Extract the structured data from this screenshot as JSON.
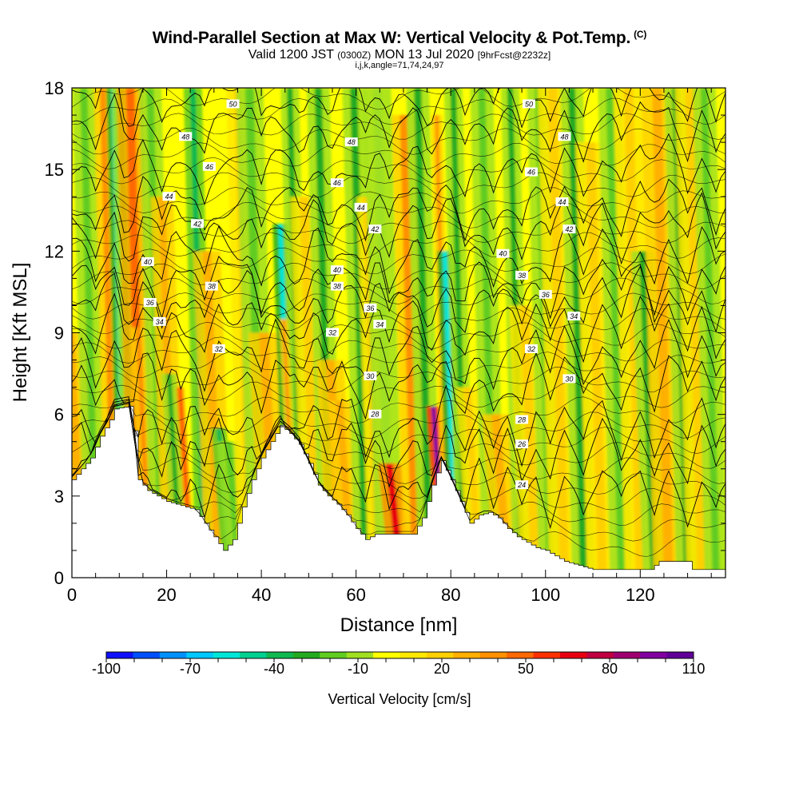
{
  "header": {
    "title": "Wind-Parallel Section at Max W: Vertical Velocity & Pot.Temp.",
    "copyright": "(C)",
    "valid_prefix": "Valid 1200 JST",
    "valid_utc": "(0300Z)",
    "valid_date": "MON 13 Jul 2020",
    "forecast_info": "[9hrFcst@2232z]",
    "params": "i,j,k,angle=71,74,24,97"
  },
  "chart_data": {
    "type": "heatmap",
    "xlabel": "Distance [nm]",
    "ylabel": "Height [Kft MSL]",
    "xlim": [
      0,
      138
    ],
    "ylim": [
      0,
      18
    ],
    "x_ticks": [
      0,
      20,
      40,
      60,
      80,
      100,
      120
    ],
    "y_ticks": [
      0,
      3,
      6,
      9,
      12,
      15,
      18
    ],
    "colorbar": {
      "title": "Vertical Velocity [cm/s]",
      "levels": [
        -100,
        -90,
        -80,
        -70,
        -60,
        -50,
        -40,
        -30,
        -20,
        -10,
        0,
        10,
        20,
        30,
        40,
        50,
        60,
        70,
        80,
        90,
        100,
        110
      ],
      "tick_labels": [
        -100,
        -70,
        -40,
        -10,
        20,
        50,
        80,
        110
      ],
      "colors": [
        "#1010ff",
        "#0050ff",
        "#0090ff",
        "#00c8ff",
        "#00e6d8",
        "#00d090",
        "#10b850",
        "#22aa20",
        "#60cc20",
        "#a0e020",
        "#ffff00",
        "#ffe800",
        "#ffd000",
        "#ffb000",
        "#ff9000",
        "#ff6800",
        "#ff3000",
        "#e80010",
        "#c00040",
        "#a00070",
        "#8000a0",
        "#600098"
      ]
    },
    "terrain_kft": [
      {
        "x": 0,
        "h": 3.6
      },
      {
        "x": 2,
        "h": 4.0
      },
      {
        "x": 4,
        "h": 4.4
      },
      {
        "x": 6,
        "h": 5.2
      },
      {
        "x": 8,
        "h": 5.8
      },
      {
        "x": 9,
        "h": 6.2
      },
      {
        "x": 12,
        "h": 6.3
      },
      {
        "x": 13,
        "h": 5.4
      },
      {
        "x": 13.5,
        "h": 4.6
      },
      {
        "x": 14,
        "h": 3.6
      },
      {
        "x": 16,
        "h": 3.2
      },
      {
        "x": 18,
        "h": 3.0
      },
      {
        "x": 20,
        "h": 2.8
      },
      {
        "x": 22,
        "h": 2.7
      },
      {
        "x": 24,
        "h": 2.6
      },
      {
        "x": 26,
        "h": 2.5
      },
      {
        "x": 28,
        "h": 2.0
      },
      {
        "x": 30,
        "h": 1.5
      },
      {
        "x": 32,
        "h": 1.0
      },
      {
        "x": 34,
        "h": 1.4
      },
      {
        "x": 36,
        "h": 2.6
      },
      {
        "x": 38,
        "h": 3.6
      },
      {
        "x": 40,
        "h": 4.4
      },
      {
        "x": 42,
        "h": 5.0
      },
      {
        "x": 44,
        "h": 5.6
      },
      {
        "x": 46,
        "h": 5.3
      },
      {
        "x": 48,
        "h": 4.9
      },
      {
        "x": 50,
        "h": 4.2
      },
      {
        "x": 52,
        "h": 3.4
      },
      {
        "x": 54,
        "h": 3.0
      },
      {
        "x": 56,
        "h": 2.7
      },
      {
        "x": 58,
        "h": 2.3
      },
      {
        "x": 60,
        "h": 1.8
      },
      {
        "x": 62,
        "h": 1.4
      },
      {
        "x": 64,
        "h": 1.6
      },
      {
        "x": 66,
        "h": 1.6
      },
      {
        "x": 68,
        "h": 1.6
      },
      {
        "x": 70,
        "h": 1.6
      },
      {
        "x": 72,
        "h": 1.6
      },
      {
        "x": 74,
        "h": 2.2
      },
      {
        "x": 76,
        "h": 3.4
      },
      {
        "x": 78,
        "h": 4.3
      },
      {
        "x": 80,
        "h": 3.6
      },
      {
        "x": 82,
        "h": 2.8
      },
      {
        "x": 84,
        "h": 2.0
      },
      {
        "x": 86,
        "h": 2.3
      },
      {
        "x": 88,
        "h": 2.4
      },
      {
        "x": 90,
        "h": 2.2
      },
      {
        "x": 92,
        "h": 1.8
      },
      {
        "x": 94,
        "h": 1.5
      },
      {
        "x": 96,
        "h": 1.3
      },
      {
        "x": 98,
        "h": 1.1
      },
      {
        "x": 100,
        "h": 1.0
      },
      {
        "x": 102,
        "h": 0.8
      },
      {
        "x": 104,
        "h": 0.6
      },
      {
        "x": 106,
        "h": 0.5
      },
      {
        "x": 108,
        "h": 0.4
      },
      {
        "x": 110,
        "h": 0.3
      },
      {
        "x": 122,
        "h": 0.3
      },
      {
        "x": 124,
        "h": 0.6
      },
      {
        "x": 130,
        "h": 0.6
      },
      {
        "x": 131,
        "h": 0.3
      },
      {
        "x": 138,
        "h": 0.3
      }
    ],
    "bands": [
      {
        "x": 2,
        "w": 2.0,
        "v": 35,
        "top": 9.0
      },
      {
        "x": 5,
        "w": 1.5,
        "v": -15,
        "top": 18
      },
      {
        "x": 9,
        "w": 1.2,
        "v": 45,
        "top": 18
      },
      {
        "x": 11.2,
        "w": 0.9,
        "v": -55,
        "top": 18
      },
      {
        "x": 12.8,
        "w": 1.2,
        "v": -25,
        "top": 18
      },
      {
        "x": 14.8,
        "w": 1.8,
        "v": 55,
        "top": 18
      },
      {
        "x": 16.5,
        "w": 1.0,
        "v": 45,
        "top": 9.2
      },
      {
        "x": 19,
        "w": 1.5,
        "v": -20,
        "top": 18
      },
      {
        "x": 21.5,
        "w": 1.5,
        "v": 30,
        "top": 14
      },
      {
        "x": 23,
        "w": 1.0,
        "v": -30,
        "top": 7.5
      },
      {
        "x": 25.3,
        "w": 0.5,
        "v": 65,
        "top": 7.0
      },
      {
        "x": 28,
        "w": 1.2,
        "v": -40,
        "top": 18
      },
      {
        "x": 31,
        "w": 1.8,
        "v": 30,
        "top": 12
      },
      {
        "x": 33.5,
        "w": 1.0,
        "v": -35,
        "top": 5.5
      },
      {
        "x": 35.5,
        "w": 1.5,
        "v": -20,
        "top": 5.0
      },
      {
        "x": 37.5,
        "w": 1.5,
        "v": 25,
        "top": 18
      },
      {
        "x": 40,
        "w": 1.8,
        "v": -15,
        "top": 18
      },
      {
        "x": 43,
        "w": 2.0,
        "v": 30,
        "top": 9.0
      },
      {
        "x": 46.5,
        "w": 1.0,
        "v": -55,
        "top": 13
      },
      {
        "x": 48.5,
        "w": 1.2,
        "v": -30,
        "top": 18
      },
      {
        "x": 47.2,
        "w": 0.6,
        "v": 40,
        "top": 9.5
      },
      {
        "x": 51.5,
        "w": 1.8,
        "v": 25,
        "top": 14
      },
      {
        "x": 54.5,
        "w": 1.5,
        "v": -25,
        "top": 18
      },
      {
        "x": 57,
        "w": 1.8,
        "v": 30,
        "top": 8
      },
      {
        "x": 59,
        "w": 1.5,
        "v": 35,
        "top": 6.5
      },
      {
        "x": 62,
        "w": 1.5,
        "v": -30,
        "top": 18
      },
      {
        "x": 64.5,
        "w": 1.2,
        "v": 20,
        "top": 14
      },
      {
        "x": 67,
        "w": 1.8,
        "v": -10,
        "top": 18
      },
      {
        "x": 69.5,
        "w": 1.5,
        "v": 70,
        "top": 4.2
      },
      {
        "x": 72.5,
        "w": 1.5,
        "v": 45,
        "top": 17
      },
      {
        "x": 75.5,
        "w": 1.5,
        "v": -30,
        "top": 18
      },
      {
        "x": 78.8,
        "w": 0.9,
        "v": 100,
        "top": 6.3
      },
      {
        "x": 79.5,
        "w": 0.7,
        "v": 40,
        "top": 17
      },
      {
        "x": 81.2,
        "w": 1.0,
        "v": -60,
        "top": 12
      },
      {
        "x": 83,
        "w": 1.2,
        "v": -25,
        "top": 18
      },
      {
        "x": 86,
        "w": 1.5,
        "v": 25,
        "top": 7
      },
      {
        "x": 89,
        "w": 1.5,
        "v": -20,
        "top": 18
      },
      {
        "x": 92,
        "w": 1.8,
        "v": 30,
        "top": 6
      },
      {
        "x": 95,
        "w": 1.2,
        "v": -25,
        "top": 18
      },
      {
        "x": 98,
        "w": 2.0,
        "v": 20,
        "top": 10
      },
      {
        "x": 101,
        "w": 1.5,
        "v": -20,
        "top": 18
      },
      {
        "x": 104,
        "w": 2.0,
        "v": 25,
        "top": 18
      },
      {
        "x": 108,
        "w": 1.5,
        "v": -25,
        "top": 18
      },
      {
        "x": 112,
        "w": 2.0,
        "v": 20,
        "top": 16
      },
      {
        "x": 116,
        "w": 1.5,
        "v": -15,
        "top": 18
      },
      {
        "x": 120,
        "w": 2.0,
        "v": 25,
        "top": 18
      },
      {
        "x": 123,
        "w": 1.5,
        "v": -30,
        "top": 12
      },
      {
        "x": 126,
        "w": 2.0,
        "v": 30,
        "top": 18
      },
      {
        "x": 130,
        "w": 1.5,
        "v": -25,
        "top": 18
      },
      {
        "x": 133,
        "w": 2.0,
        "v": 25,
        "top": 18
      },
      {
        "x": 136,
        "w": 1.5,
        "v": -20,
        "top": 18
      }
    ],
    "theta_contours": [
      {
        "label": "24",
        "h": 3.3
      },
      {
        "label": "26",
        "h": 4.7
      },
      {
        "label": "28",
        "h": 5.6
      },
      {
        "label": "30",
        "h": 7.3
      },
      {
        "label": "32",
        "h": 8.3
      },
      {
        "label": "34",
        "h": 9.4
      },
      {
        "label": "36",
        "h": 10.3
      },
      {
        "label": "38",
        "h": 11.0
      },
      {
        "label": "40",
        "h": 11.9
      },
      {
        "label": "42",
        "h": 13.0
      },
      {
        "label": "44",
        "h": 13.8
      },
      {
        "label": "46",
        "h": 15.2
      },
      {
        "label": "48",
        "h": 16.7
      },
      {
        "label": "50",
        "h": 17.8
      }
    ],
    "contour_labels": [
      {
        "t": "50",
        "x": 34,
        "y": 17.4
      },
      {
        "t": "48",
        "x": 24,
        "y": 16.2
      },
      {
        "t": "46",
        "x": 29,
        "y": 15.1
      },
      {
        "t": "44",
        "x": 20.5,
        "y": 14.0
      },
      {
        "t": "42",
        "x": 26.5,
        "y": 13.0
      },
      {
        "t": "40",
        "x": 16,
        "y": 11.6
      },
      {
        "t": "38",
        "x": 29.5,
        "y": 10.7
      },
      {
        "t": "36",
        "x": 16.5,
        "y": 10.1
      },
      {
        "t": "34",
        "x": 18.5,
        "y": 9.4
      },
      {
        "t": "32",
        "x": 31,
        "y": 8.4
      },
      {
        "t": "48",
        "x": 59,
        "y": 16.0
      },
      {
        "t": "46",
        "x": 56,
        "y": 14.5
      },
      {
        "t": "44",
        "x": 61,
        "y": 13.6
      },
      {
        "t": "42",
        "x": 64,
        "y": 12.8
      },
      {
        "t": "40",
        "x": 56,
        "y": 11.3
      },
      {
        "t": "38",
        "x": 56,
        "y": 10.7
      },
      {
        "t": "36",
        "x": 63,
        "y": 9.9
      },
      {
        "t": "34",
        "x": 65,
        "y": 9.3
      },
      {
        "t": "32",
        "x": 55,
        "y": 9.0
      },
      {
        "t": "30",
        "x": 63,
        "y": 7.4
      },
      {
        "t": "28",
        "x": 64,
        "y": 6.0
      },
      {
        "t": "50",
        "x": 96.5,
        "y": 17.4
      },
      {
        "t": "48",
        "x": 104,
        "y": 16.2
      },
      {
        "t": "46",
        "x": 97,
        "y": 14.9
      },
      {
        "t": "44",
        "x": 103.5,
        "y": 13.8
      },
      {
        "t": "42",
        "x": 105,
        "y": 12.8
      },
      {
        "t": "40",
        "x": 91,
        "y": 11.9
      },
      {
        "t": "38",
        "x": 95,
        "y": 11.1
      },
      {
        "t": "36",
        "x": 100,
        "y": 10.4
      },
      {
        "t": "34",
        "x": 106,
        "y": 9.6
      },
      {
        "t": "32",
        "x": 97,
        "y": 8.4
      },
      {
        "t": "30",
        "x": 105,
        "y": 7.3
      },
      {
        "t": "28",
        "x": 95,
        "y": 5.8
      },
      {
        "t": "26",
        "x": 95,
        "y": 4.9
      },
      {
        "t": "24",
        "x": 95,
        "y": 3.4
      }
    ]
  }
}
